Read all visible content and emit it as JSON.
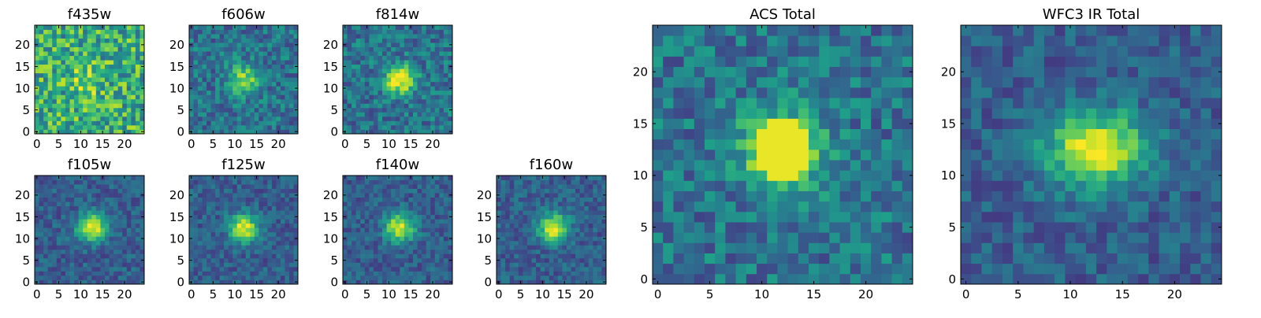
{
  "figure": {
    "colormap": "viridis"
  },
  "chart_data": [
    {
      "type": "heatmap",
      "title": "f435w",
      "xticks": [
        0,
        5,
        10,
        15,
        20
      ],
      "yticks": [
        0,
        5,
        10,
        15,
        20
      ],
      "xlim": [
        0,
        25
      ],
      "ylim": [
        0,
        25
      ],
      "grid_size": [
        25,
        25
      ],
      "source_center": [
        11.5,
        11.5
      ],
      "source_peak": "weak",
      "background_noise": "high",
      "colormap": "viridis"
    },
    {
      "type": "heatmap",
      "title": "f606w",
      "xticks": [
        0,
        5,
        10,
        15,
        20
      ],
      "yticks": [
        0,
        5,
        10,
        15,
        20
      ],
      "xlim": [
        0,
        25
      ],
      "ylim": [
        0,
        25
      ],
      "grid_size": [
        25,
        25
      ],
      "source_center": [
        12,
        12
      ],
      "source_peak": "moderate",
      "background_noise": "medium",
      "colormap": "viridis"
    },
    {
      "type": "heatmap",
      "title": "f814w",
      "xticks": [
        0,
        5,
        10,
        15,
        20
      ],
      "yticks": [
        0,
        5,
        10,
        15,
        20
      ],
      "xlim": [
        0,
        25
      ],
      "ylim": [
        0,
        25
      ],
      "grid_size": [
        25,
        25
      ],
      "source_center": [
        12.5,
        12
      ],
      "source_peak": "strong",
      "background_noise": "medium",
      "colormap": "viridis"
    },
    {
      "type": "heatmap",
      "title": "f105w",
      "xticks": [
        0,
        5,
        10,
        15,
        20
      ],
      "yticks": [
        0,
        5,
        10,
        15,
        20
      ],
      "xlim": [
        0,
        25
      ],
      "ylim": [
        0,
        25
      ],
      "grid_size": [
        25,
        25
      ],
      "source_center": [
        12.5,
        12.5
      ],
      "source_peak": "strong",
      "background_noise": "low",
      "colormap": "viridis"
    },
    {
      "type": "heatmap",
      "title": "f125w",
      "xticks": [
        0,
        5,
        10,
        15,
        20
      ],
      "yticks": [
        0,
        5,
        10,
        15,
        20
      ],
      "xlim": [
        0,
        25
      ],
      "ylim": [
        0,
        25
      ],
      "grid_size": [
        25,
        25
      ],
      "source_center": [
        12,
        12.5
      ],
      "source_peak": "strong",
      "background_noise": "low",
      "colormap": "viridis"
    },
    {
      "type": "heatmap",
      "title": "f140w",
      "xticks": [
        0,
        5,
        10,
        15,
        20
      ],
      "yticks": [
        0,
        5,
        10,
        15,
        20
      ],
      "xlim": [
        0,
        25
      ],
      "ylim": [
        0,
        25
      ],
      "grid_size": [
        25,
        25
      ],
      "source_center": [
        12.5,
        12.5
      ],
      "source_peak": "strong",
      "background_noise": "low",
      "colormap": "viridis"
    },
    {
      "type": "heatmap",
      "title": "f160w",
      "xticks": [
        0,
        5,
        10,
        15,
        20
      ],
      "yticks": [
        0,
        5,
        10,
        15,
        20
      ],
      "xlim": [
        0,
        25
      ],
      "ylim": [
        0,
        25
      ],
      "grid_size": [
        25,
        25
      ],
      "source_center": [
        12.5,
        12.5
      ],
      "source_peak": "strong",
      "background_noise": "low",
      "colormap": "viridis"
    },
    {
      "type": "heatmap",
      "title": "ACS Total",
      "xticks": [
        0,
        5,
        10,
        15,
        20
      ],
      "yticks": [
        0,
        5,
        10,
        15,
        20
      ],
      "xlim": [
        0,
        25
      ],
      "ylim": [
        0,
        25
      ],
      "grid_size": [
        25,
        25
      ],
      "source_center": [
        12,
        12.5
      ],
      "source_peak": "strong",
      "background_noise": "medium",
      "colormap": "viridis"
    },
    {
      "type": "heatmap",
      "title": "WFC3 IR Total",
      "xticks": [
        0,
        5,
        10,
        15,
        20
      ],
      "yticks": [
        0,
        5,
        10,
        15,
        20
      ],
      "xlim": [
        0,
        25
      ],
      "ylim": [
        0,
        25
      ],
      "grid_size": [
        25,
        25
      ],
      "source_center": [
        12.5,
        12.5
      ],
      "source_peak": "strong",
      "background_noise": "low",
      "colormap": "viridis"
    }
  ]
}
